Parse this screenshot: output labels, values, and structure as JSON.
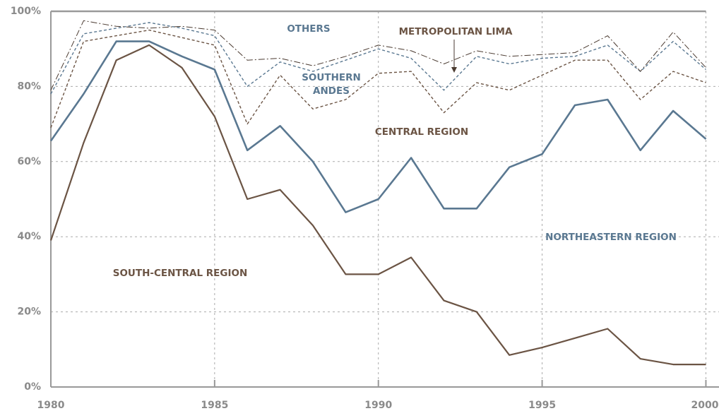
{
  "chart_data": {
    "type": "stacked_line",
    "x": [
      1980,
      1981,
      1982,
      1983,
      1984,
      1985,
      1986,
      1987,
      1988,
      1989,
      1990,
      1991,
      1992,
      1993,
      1994,
      1995,
      1996,
      1997,
      1998,
      1999,
      2000
    ],
    "xlim": [
      1980,
      2000.4
    ],
    "xticks": [
      1980,
      1985,
      1990,
      1995,
      2000
    ],
    "ylim": [
      0,
      100
    ],
    "yticks": [
      {
        "value": 0,
        "label": "0%"
      },
      {
        "value": 20,
        "label": "20%"
      },
      {
        "value": 40,
        "label": "40%"
      },
      {
        "value": 60,
        "label": "60%"
      },
      {
        "value": 80,
        "label": "80%"
      },
      {
        "value": 100,
        "label": "100%"
      }
    ],
    "grid": true,
    "series": [
      {
        "name": "SOUTH-CENTRAL REGION",
        "color": "#6b5444",
        "values": [
          39,
          65,
          87,
          91,
          85,
          72,
          50,
          52.5,
          43,
          30,
          30,
          34.5,
          23,
          20,
          8.5,
          10.5,
          13,
          15.5,
          7.5,
          6,
          6
        ]
      },
      {
        "name": "NORTHEASTERN REGION",
        "color": "#5a7891",
        "values": [
          26.5,
          13,
          5,
          1,
          3,
          12.5,
          13,
          17,
          17,
          16.5,
          20,
          26.5,
          24.5,
          27.5,
          50,
          51.5,
          62,
          61,
          55.5,
          67.5,
          60
        ]
      },
      {
        "name": "CENTRAL REGION",
        "color": "#6b5444",
        "values": [
          3.5,
          14,
          1.5,
          3,
          5,
          6.5,
          7,
          13.5,
          14,
          30,
          33.5,
          23,
          25.5,
          33.5,
          20.5,
          21,
          12,
          10.5,
          13.5,
          10.5,
          15
        ]
      },
      {
        "name": "SOUTHERN ANDES",
        "color": "#5a7891",
        "values": [
          9,
          2,
          2,
          2,
          2.5,
          2.5,
          10,
          3.5,
          10,
          10.5,
          6.5,
          3.5,
          6,
          7,
          7,
          4.5,
          1,
          4,
          7.5,
          8,
          3.5
        ]
      },
      {
        "name": "METROPOLITAN LIMA",
        "color": "#4a3a30",
        "values": [
          1,
          3.5,
          0.5,
          -1.5,
          0.5,
          1.5,
          7,
          1,
          1.5,
          1,
          1,
          2,
          7,
          1.5,
          2,
          1,
          1,
          2.5,
          0,
          2.5,
          0.5
        ]
      },
      {
        "name": "OTHERS",
        "color": "#9a9a9a",
        "values": [
          21,
          2.5,
          4,
          4.5,
          4,
          5,
          13,
          12.5,
          14.5,
          12,
          9,
          10.5,
          14,
          10.5,
          12,
          11.5,
          11,
          6.5,
          16,
          5.5,
          15
        ]
      }
    ]
  }
}
